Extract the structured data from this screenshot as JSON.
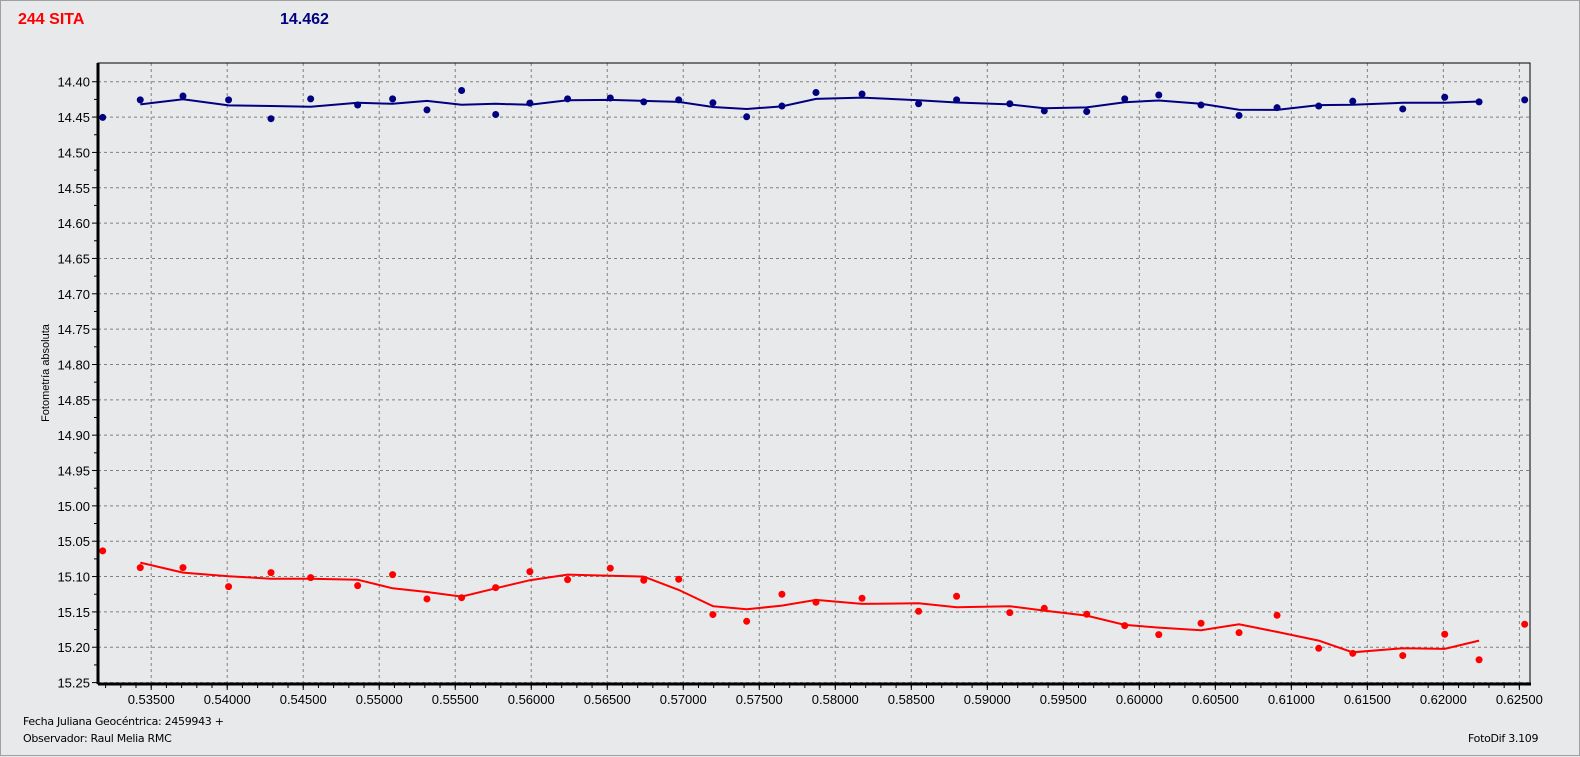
{
  "header": {
    "object_name": "244 SITA",
    "mean_value": "14.462"
  },
  "footer": {
    "date_label": "Fecha Juliana Geocéntrica: 2459943 +",
    "observer": "Observador: Raul Melia RMC",
    "software": "FotoDif 3.109"
  },
  "colors": {
    "object": "#ff0000",
    "comparison": "#000080",
    "grid": "#808080",
    "background": "#e8e9eb"
  },
  "chart_data": {
    "type": "scatter",
    "title": "",
    "xlabel": "",
    "ylabel": "Fotometría absoluta",
    "xlim": [
      0.5315,
      0.6257
    ],
    "ylim": [
      15.252,
      14.3735
    ],
    "y_inverted": true,
    "grid": true,
    "x_ticks": [
      "0.53500",
      "0.54000",
      "0.54500",
      "0.55000",
      "0.55500",
      "0.56000",
      "0.56500",
      "0.57000",
      "0.57500",
      "0.58000",
      "0.58500",
      "0.59000",
      "0.59500",
      "0.60000",
      "0.60500",
      "0.61000",
      "0.61500",
      "0.62000",
      "0.62500"
    ],
    "y_ticks": [
      "14.40",
      "14.45",
      "14.50",
      "14.55",
      "14.60",
      "14.65",
      "14.70",
      "14.75",
      "14.80",
      "14.85",
      "14.90",
      "14.95",
      "15.00",
      "15.05",
      "15.10",
      "15.15",
      "15.20",
      "15.25"
    ],
    "x": [
      0.53181,
      0.53428,
      0.53709,
      0.54009,
      0.54288,
      0.54549,
      0.54858,
      0.55088,
      0.55314,
      0.55542,
      0.55766,
      0.55991,
      0.56239,
      0.5652,
      0.5674,
      0.5697,
      0.57195,
      0.57417,
      0.57649,
      0.57873,
      0.58176,
      0.58548,
      0.58798,
      0.59148,
      0.59375,
      0.59654,
      0.59904,
      0.60128,
      0.60406,
      0.60656,
      0.60906,
      0.6118,
      0.61404,
      0.61733,
      0.62009,
      0.62235,
      0.62535
    ],
    "series": [
      {
        "color": "#000080",
        "points": [
          14.4505,
          14.4257,
          14.4202,
          14.4257,
          14.4523,
          14.4243,
          14.433,
          14.4243,
          14.4399,
          14.4124,
          14.4464,
          14.4303,
          14.4243,
          14.423,
          14.4285,
          14.4257,
          14.4298,
          14.4496,
          14.4344,
          14.4152,
          14.4174,
          14.4312,
          14.4257,
          14.4312,
          14.4413,
          14.4422,
          14.4243,
          14.4188,
          14.433,
          14.4477,
          14.4367,
          14.4344,
          14.4275,
          14.4385,
          14.422,
          14.4285,
          14.4257
        ],
        "trend": [
          null,
          14.4321,
          14.4248,
          14.4335,
          14.4344,
          14.4353,
          14.4298,
          14.4312,
          14.4271,
          14.4326,
          14.4312,
          14.4326,
          14.4262,
          14.4257,
          14.4271,
          14.4285,
          14.4358,
          14.4386,
          14.4349,
          14.4243,
          14.4225,
          14.4262,
          14.4294,
          14.4321,
          14.4376,
          14.4363,
          14.4289,
          14.4266,
          14.4312,
          14.4395,
          14.4399,
          14.433,
          14.4326,
          14.4298,
          14.4298,
          14.428,
          null
        ]
      },
      {
        "color": "#ff0000",
        "points": [
          15.0637,
          15.0874,
          15.0874,
          15.1143,
          15.0944,
          15.1015,
          15.1129,
          15.0973,
          15.1317,
          15.1299,
          15.1157,
          15.093,
          15.1044,
          15.0882,
          15.1052,
          15.1038,
          15.1538,
          15.1633,
          15.125,
          15.1364,
          15.1307,
          15.1491,
          15.1279,
          15.151,
          15.1449,
          15.1534,
          15.1694,
          15.1822,
          15.1661,
          15.1794,
          15.1548,
          15.2015,
          15.2086,
          15.2118,
          15.1816,
          15.2177,
          15.1675
        ],
        "trend": [
          null,
          15.0803,
          15.0944,
          15.0996,
          15.103,
          15.103,
          15.1044,
          15.1166,
          15.1218,
          15.1284,
          15.1166,
          15.1052,
          15.0973,
          15.099,
          15.1,
          15.1189,
          15.142,
          15.1463,
          15.1411,
          15.133,
          15.1387,
          15.1378,
          15.1435,
          15.142,
          15.1481,
          15.1552,
          15.1684,
          15.1722,
          15.1761,
          15.1675,
          15.1783,
          15.1906,
          15.2071,
          15.2015,
          15.2024,
          15.1906,
          null
        ]
      }
    ]
  }
}
